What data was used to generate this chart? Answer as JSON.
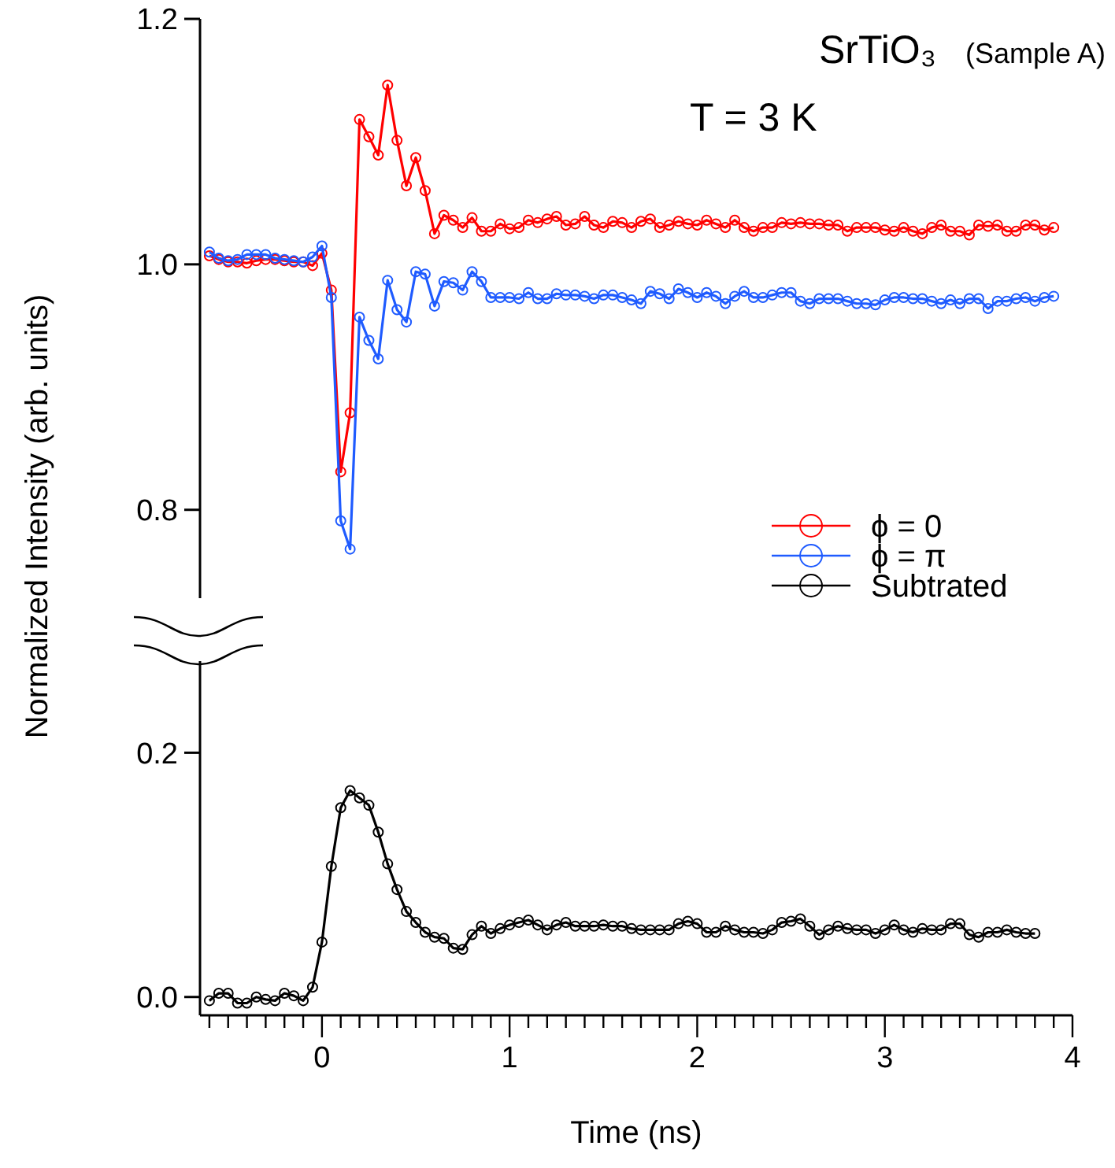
{
  "chart_data": [
    {
      "type": "line",
      "ylabel": "Normalized Intensity (arb. units)",
      "annotations": [
        "SrTiO₃",
        "(Sample A)",
        "T = 3 K"
      ],
      "x": [
        -0.6,
        -0.55,
        -0.5,
        -0.45,
        -0.4,
        -0.35,
        -0.3,
        -0.25,
        -0.2,
        -0.15,
        -0.1,
        -0.05,
        0,
        0.05,
        0.1,
        0.15,
        0.2,
        0.25,
        0.3,
        0.35,
        0.4,
        0.45,
        0.5,
        0.55,
        0.6,
        0.65,
        0.7,
        0.75,
        0.8,
        0.85,
        0.9,
        0.95,
        1,
        1.05,
        1.1,
        1.15,
        1.2,
        1.25,
        1.3,
        1.35,
        1.4,
        1.45,
        1.5,
        1.55,
        1.6,
        1.65,
        1.7,
        1.75,
        1.8,
        1.85,
        1.9,
        1.95,
        2,
        2.05,
        2.1,
        2.15,
        2.2,
        2.25,
        2.3,
        2.35,
        2.4,
        2.45,
        2.5,
        2.55,
        2.6,
        2.65,
        2.7,
        2.75,
        2.8,
        2.85,
        2.9,
        2.95,
        3,
        3.05,
        3.1,
        3.15,
        3.2,
        3.25,
        3.3,
        3.35,
        3.4,
        3.45,
        3.5,
        3.55,
        3.6,
        3.65,
        3.7,
        3.75,
        3.8,
        3.85,
        3.9
      ],
      "xlim": [
        -0.65,
        4
      ],
      "ylim": [
        0.728,
        1.2
      ],
      "yticks": [
        {
          "value": 0.8,
          "label": "0.8"
        },
        {
          "value": 1,
          "label": "1.0"
        },
        {
          "value": 1.2,
          "label": "1.2"
        }
      ],
      "tick_labels": "y",
      "marker": "circle",
      "legend": "right",
      "series": [
        {
          "name": "ϕ = 0",
          "color": "#ff0000",
          "values": [
            1.007,
            1.004,
            1.002,
            1.002,
            1.001,
            1.003,
            1.004,
            1.004,
            1.003,
            1.002,
            1.002,
            0.999,
            1.009,
            0.979,
            0.831,
            0.879,
            1.118,
            1.104,
            1.089,
            1.146,
            1.101,
            1.064,
            1.087,
            1.06,
            1.025,
            1.04,
            1.036,
            1.03,
            1.038,
            1.027,
            1.027,
            1.033,
            1.029,
            1.03,
            1.036,
            1.034,
            1.037,
            1.039,
            1.032,
            1.033,
            1.039,
            1.032,
            1.03,
            1.035,
            1.034,
            1.03,
            1.035,
            1.037,
            1.03,
            1.032,
            1.035,
            1.033,
            1.032,
            1.036,
            1.033,
            1.03,
            1.036,
            1.03,
            1.027,
            1.03,
            1.03,
            1.034,
            1.033,
            1.034,
            1.033,
            1.033,
            1.032,
            1.032,
            1.027,
            1.03,
            1.03,
            1.03,
            1.028,
            1.027,
            1.03,
            1.027,
            1.025,
            1.03,
            1.032,
            1.027,
            1.027,
            1.024,
            1.032,
            1.031,
            1.032,
            1.027,
            1.027,
            1.032,
            1.032,
            1.028,
            1.03
          ]
        },
        {
          "name": "ϕ = π",
          "color": "#1f5bff",
          "values": [
            1.01,
            1.005,
            1.003,
            1.004,
            1.008,
            1.008,
            1.008,
            1.005,
            1.004,
            1.003,
            1.002,
            1.006,
            1.015,
            0.973,
            0.791,
            0.768,
            0.957,
            0.938,
            0.923,
            0.987,
            0.963,
            0.953,
            0.994,
            0.992,
            0.966,
            0.986,
            0.985,
            0.979,
            0.994,
            0.986,
            0.973,
            0.973,
            0.973,
            0.972,
            0.977,
            0.972,
            0.972,
            0.976,
            0.975,
            0.975,
            0.974,
            0.972,
            0.975,
            0.975,
            0.973,
            0.971,
            0.968,
            0.978,
            0.976,
            0.972,
            0.98,
            0.977,
            0.973,
            0.977,
            0.974,
            0.968,
            0.974,
            0.978,
            0.973,
            0.973,
            0.975,
            0.977,
            0.977,
            0.97,
            0.968,
            0.972,
            0.972,
            0.972,
            0.97,
            0.968,
            0.968,
            0.967,
            0.971,
            0.973,
            0.973,
            0.972,
            0.972,
            0.97,
            0.968,
            0.971,
            0.968,
            0.972,
            0.972,
            0.964,
            0.97,
            0.97,
            0.972,
            0.973,
            0.97,
            0.973,
            0.974
          ]
        }
      ]
    },
    {
      "type": "line",
      "xlabel": "Time (ns)",
      "xlim": [
        -0.65,
        4
      ],
      "ylim": [
        -0.015,
        0.275
      ],
      "xticks": [
        {
          "value": -0.6,
          "label": null
        },
        {
          "value": -0.5,
          "label": null
        },
        {
          "value": -0.4,
          "label": null
        },
        {
          "value": -0.3,
          "label": null
        },
        {
          "value": -0.2,
          "label": null
        },
        {
          "value": -0.1,
          "label": null
        },
        0,
        {
          "value": 0.1,
          "label": null
        },
        {
          "value": 0.2,
          "label": null
        },
        {
          "value": 0.3,
          "label": null
        },
        {
          "value": 0.4,
          "label": null
        },
        {
          "value": 0.5,
          "label": null
        },
        {
          "value": 0.6,
          "label": null
        },
        {
          "value": 0.7,
          "label": null
        },
        {
          "value": 0.8,
          "label": null
        },
        {
          "value": 0.9,
          "label": null
        },
        1,
        {
          "value": 1.1,
          "label": null
        },
        {
          "value": 1.2,
          "label": null
        },
        {
          "value": 1.3,
          "label": null
        },
        {
          "value": 1.4,
          "label": null
        },
        {
          "value": 1.5,
          "label": null
        },
        {
          "value": 1.6,
          "label": null
        },
        {
          "value": 1.7,
          "label": null
        },
        {
          "value": 1.8,
          "label": null
        },
        {
          "value": 1.9,
          "label": null
        },
        2,
        {
          "value": 2.1,
          "label": null
        },
        {
          "value": 2.2,
          "label": null
        },
        {
          "value": 2.3,
          "label": null
        },
        {
          "value": 2.4,
          "label": null
        },
        {
          "value": 2.5,
          "label": null
        },
        {
          "value": 2.6,
          "label": null
        },
        {
          "value": 2.7,
          "label": null
        },
        {
          "value": 2.8,
          "label": null
        },
        {
          "value": 2.9,
          "label": null
        },
        3,
        {
          "value": 3.1,
          "label": null
        },
        {
          "value": 3.2,
          "label": null
        },
        {
          "value": 3.3,
          "label": null
        },
        {
          "value": 3.4,
          "label": null
        },
        {
          "value": 3.5,
          "label": null
        },
        {
          "value": 3.6,
          "label": null
        },
        {
          "value": 3.7,
          "label": null
        },
        {
          "value": 3.8,
          "label": null
        },
        {
          "value": 3.9,
          "label": null
        },
        4
      ],
      "yticks": [
        {
          "value": 0,
          "label": "0.0"
        },
        {
          "value": 0.2,
          "label": "0.2"
        }
      ],
      "marker": "circle",
      "series": [
        {
          "name": "Subtrated",
          "color": "#000000",
          "x": [
            -0.6,
            -0.55,
            -0.5,
            -0.45,
            -0.4,
            -0.35,
            -0.3,
            -0.25,
            -0.2,
            -0.15,
            -0.1,
            -0.05,
            0,
            0.05,
            0.1,
            0.15,
            0.2,
            0.25,
            0.3,
            0.35,
            0.4,
            0.45,
            0.5,
            0.55,
            0.6,
            0.65,
            0.7,
            0.75,
            0.8,
            0.85,
            0.9,
            0.95,
            1,
            1.05,
            1.1,
            1.15,
            1.2,
            1.25,
            1.3,
            1.35,
            1.4,
            1.45,
            1.5,
            1.55,
            1.6,
            1.65,
            1.7,
            1.75,
            1.8,
            1.85,
            1.9,
            1.95,
            2,
            2.05,
            2.1,
            2.15,
            2.2,
            2.25,
            2.3,
            2.35,
            2.4,
            2.45,
            2.5,
            2.55,
            2.6,
            2.65,
            2.7,
            2.75,
            2.8,
            2.85,
            2.9,
            2.95,
            3,
            3.05,
            3.1,
            3.15,
            3.2,
            3.25,
            3.3,
            3.35,
            3.4,
            3.45,
            3.5,
            3.55,
            3.6,
            3.65,
            3.7,
            3.75,
            3.8
          ],
          "values": [
            -0.003,
            0.003,
            0.003,
            -0.005,
            -0.005,
            0,
            -0.002,
            -0.003,
            0.003,
            0.001,
            -0.003,
            0.008,
            0.045,
            0.107,
            0.155,
            0.169,
            0.163,
            0.157,
            0.135,
            0.109,
            0.088,
            0.07,
            0.061,
            0.053,
            0.049,
            0.048,
            0.04,
            0.039,
            0.051,
            0.058,
            0.052,
            0.056,
            0.059,
            0.061,
            0.063,
            0.059,
            0.055,
            0.059,
            0.061,
            0.058,
            0.058,
            0.058,
            0.059,
            0.058,
            0.058,
            0.056,
            0.055,
            0.055,
            0.055,
            0.055,
            0.06,
            0.062,
            0.06,
            0.053,
            0.053,
            0.058,
            0.055,
            0.053,
            0.053,
            0.052,
            0.055,
            0.061,
            0.062,
            0.064,
            0.058,
            0.051,
            0.055,
            0.058,
            0.056,
            0.055,
            0.055,
            0.052,
            0.055,
            0.059,
            0.055,
            0.053,
            0.056,
            0.055,
            0.055,
            0.06,
            0.06,
            0.051,
            0.049,
            0.053,
            0.053,
            0.055,
            0.053,
            0.052,
            0.052
          ]
        }
      ]
    }
  ]
}
